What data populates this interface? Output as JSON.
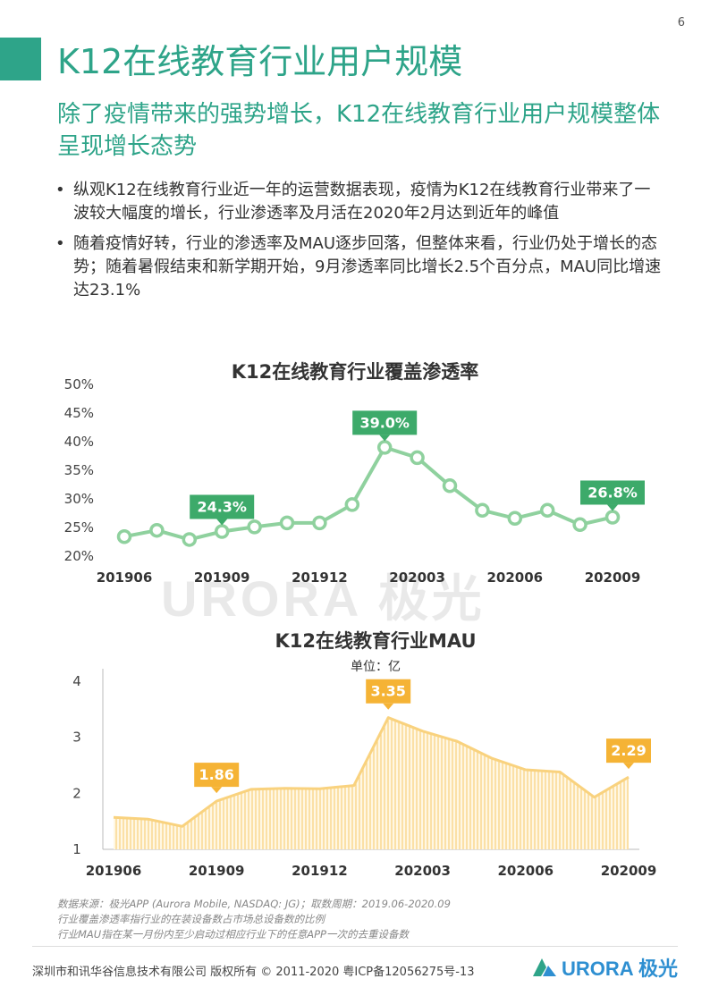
{
  "page": {
    "number": "6"
  },
  "header": {
    "title": "K12在线教育行业用户规模",
    "subtitle": "除了疫情带来的强势增长，K12在线教育行业用户规模整体呈现增长态势"
  },
  "bullets": [
    {
      "text": "纵观K12在线教育行业近一年的运营数据表现，疫情为K12在线教育行业带来了一波较大幅度的增长，行业渗透率及月活在2020年2月达到近年的峰值"
    },
    {
      "text": "随着疫情好转，行业的渗透率及MAU逐步回落，但整体来看，行业仍处于增长的态势；随着暑假结束和新学期开始，9月渗透率同比增长2.5个百分点，MAU同比增速达23.1%"
    }
  ],
  "watermark": "URORA 极光",
  "chart_data": [
    {
      "type": "line",
      "title": "K12在线教育行业覆盖渗透率",
      "x": [
        "201906",
        "201907",
        "201908",
        "201909",
        "201910",
        "201911",
        "201912",
        "202001",
        "202002",
        "202003",
        "202004",
        "202005",
        "202006",
        "202007",
        "202008",
        "202009"
      ],
      "x_tick_labels": [
        "201906",
        "201909",
        "201912",
        "202003",
        "202006",
        "202009"
      ],
      "values": [
        23.4,
        24.5,
        22.9,
        24.3,
        25.1,
        25.8,
        25.8,
        29.0,
        39.0,
        37.2,
        32.3,
        28.0,
        26.6,
        28.0,
        25.5,
        26.8
      ],
      "y_ticks": [
        "20%",
        "25%",
        "30%",
        "35%",
        "40%",
        "45%",
        "50%"
      ],
      "ylim": [
        20,
        50
      ],
      "data_labels": [
        {
          "index": 3,
          "text": "24.3%"
        },
        {
          "index": 8,
          "text": "39.0%"
        },
        {
          "index": 15,
          "text": "26.8%"
        }
      ],
      "color": "#8fd19e",
      "label_color": "#3daa6a"
    },
    {
      "type": "area",
      "title": "K12在线教育行业MAU",
      "subtitle": "单位：亿",
      "x": [
        "201906",
        "201907",
        "201908",
        "201909",
        "201910",
        "201911",
        "201912",
        "202001",
        "202002",
        "202003",
        "202004",
        "202005",
        "202006",
        "202007",
        "202008",
        "202009"
      ],
      "x_tick_labels": [
        "201906",
        "201909",
        "201912",
        "202003",
        "202006",
        "202009"
      ],
      "values": [
        1.57,
        1.54,
        1.41,
        1.86,
        2.07,
        2.09,
        2.08,
        2.14,
        3.35,
        3.11,
        2.93,
        2.63,
        2.42,
        2.38,
        1.93,
        2.29
      ],
      "y_ticks": [
        "1",
        "2",
        "3",
        "4"
      ],
      "ylim": [
        1,
        4
      ],
      "data_labels": [
        {
          "index": 3,
          "text": "1.86"
        },
        {
          "index": 8,
          "text": "3.35"
        },
        {
          "index": 15,
          "text": "2.29"
        }
      ],
      "color": "#f9d27e",
      "label_color": "#f5b335"
    }
  ],
  "notes": [
    "数据来源：极光APP (Aurora Mobile, NASDAQ: JG)；取数周期：2019.06-2020.09",
    "行业覆盖渗透率指行业的在装设备数占市场总设备数的比例",
    "行业MAU指在某一月份内至少启动过相应行业下的任意APP一次的去重设备数"
  ],
  "footer": {
    "copyright": "深圳市和讯华谷信息技术有限公司 版权所有 © 2011-2020 粤ICP备12056275号-13",
    "logo_text": "URORA 极光"
  }
}
